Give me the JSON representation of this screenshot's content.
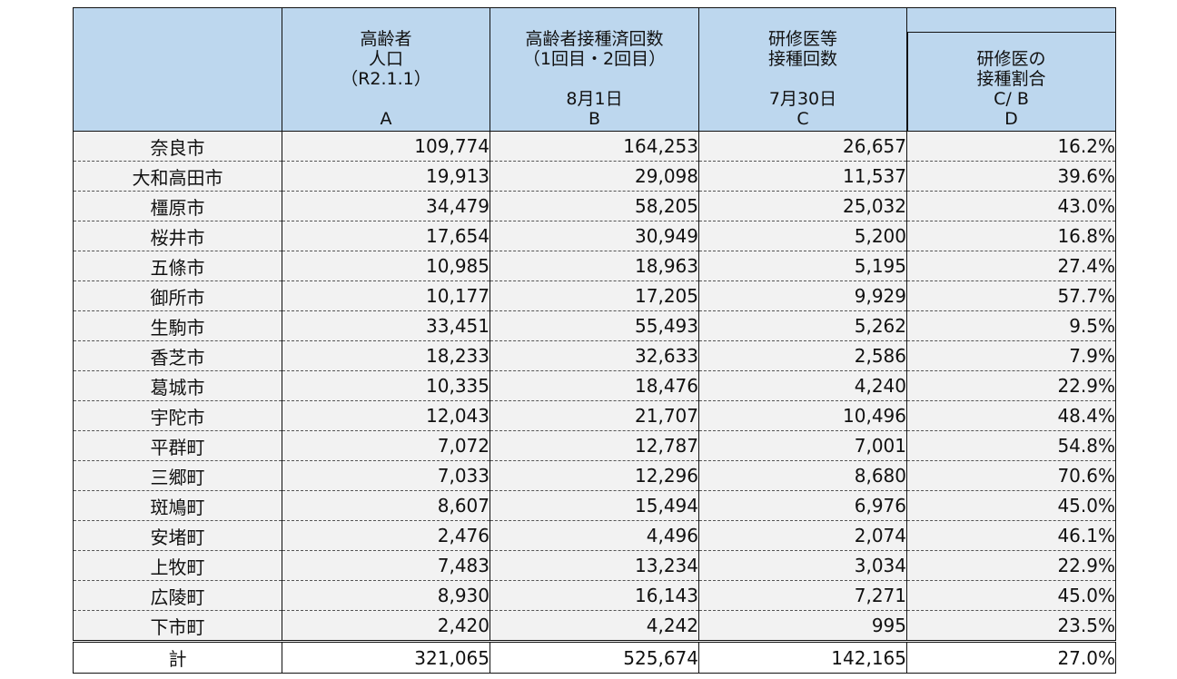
{
  "headers": [
    {
      "lines": [
        "",
        "",
        "",
        "",
        ""
      ]
    },
    {
      "lines": [
        "高齢者",
        "人口",
        "（R2.1.1）",
        "",
        "A"
      ]
    },
    {
      "lines": [
        "高齢者接種済回数",
        "（1回目・2回目）",
        "",
        "8月1日",
        "B"
      ]
    },
    {
      "lines": [
        "研修医等",
        "接種回数",
        "",
        "7月30日",
        "C"
      ]
    },
    {
      "lines": [
        "研修医の",
        "接種割合",
        "C/ B",
        "D"
      ]
    }
  ],
  "rows": [
    {
      "name": "奈良市",
      "a": "109,774",
      "b": "164,253",
      "c": "26,657",
      "d": "16.2%"
    },
    {
      "name": "大和高田市",
      "a": "19,913",
      "b": "29,098",
      "c": "11,537",
      "d": "39.6%"
    },
    {
      "name": "橿原市",
      "a": "34,479",
      "b": "58,205",
      "c": "25,032",
      "d": "43.0%"
    },
    {
      "name": "桜井市",
      "a": "17,654",
      "b": "30,949",
      "c": "5,200",
      "d": "16.8%"
    },
    {
      "name": "五條市",
      "a": "10,985",
      "b": "18,963",
      "c": "5,195",
      "d": "27.4%"
    },
    {
      "name": "御所市",
      "a": "10,177",
      "b": "17,205",
      "c": "9,929",
      "d": "57.7%"
    },
    {
      "name": "生駒市",
      "a": "33,451",
      "b": "55,493",
      "c": "5,262",
      "d": "9.5%"
    },
    {
      "name": "香芝市",
      "a": "18,233",
      "b": "32,633",
      "c": "2,586",
      "d": "7.9%"
    },
    {
      "name": "葛城市",
      "a": "10,335",
      "b": "18,476",
      "c": "4,240",
      "d": "22.9%"
    },
    {
      "name": "宇陀市",
      "a": "12,043",
      "b": "21,707",
      "c": "10,496",
      "d": "48.4%"
    },
    {
      "name": "平群町",
      "a": "7,072",
      "b": "12,787",
      "c": "7,001",
      "d": "54.8%"
    },
    {
      "name": "三郷町",
      "a": "7,033",
      "b": "12,296",
      "c": "8,680",
      "d": "70.6%"
    },
    {
      "name": "斑鳩町",
      "a": "8,607",
      "b": "15,494",
      "c": "6,976",
      "d": "45.0%"
    },
    {
      "name": "安堵町",
      "a": "2,476",
      "b": "4,496",
      "c": "2,074",
      "d": "46.1%"
    },
    {
      "name": "上牧町",
      "a": "7,483",
      "b": "13,234",
      "c": "3,034",
      "d": "22.9%"
    },
    {
      "name": "広陵町",
      "a": "8,930",
      "b": "16,143",
      "c": "7,271",
      "d": "45.0%"
    },
    {
      "name": "下市町",
      "a": "2,420",
      "b": "4,242",
      "c": "995",
      "d": "23.5%"
    }
  ],
  "total": {
    "name": "計",
    "a": "321,065",
    "b": "525,674",
    "c": "142,165",
    "d": "27.0%"
  }
}
